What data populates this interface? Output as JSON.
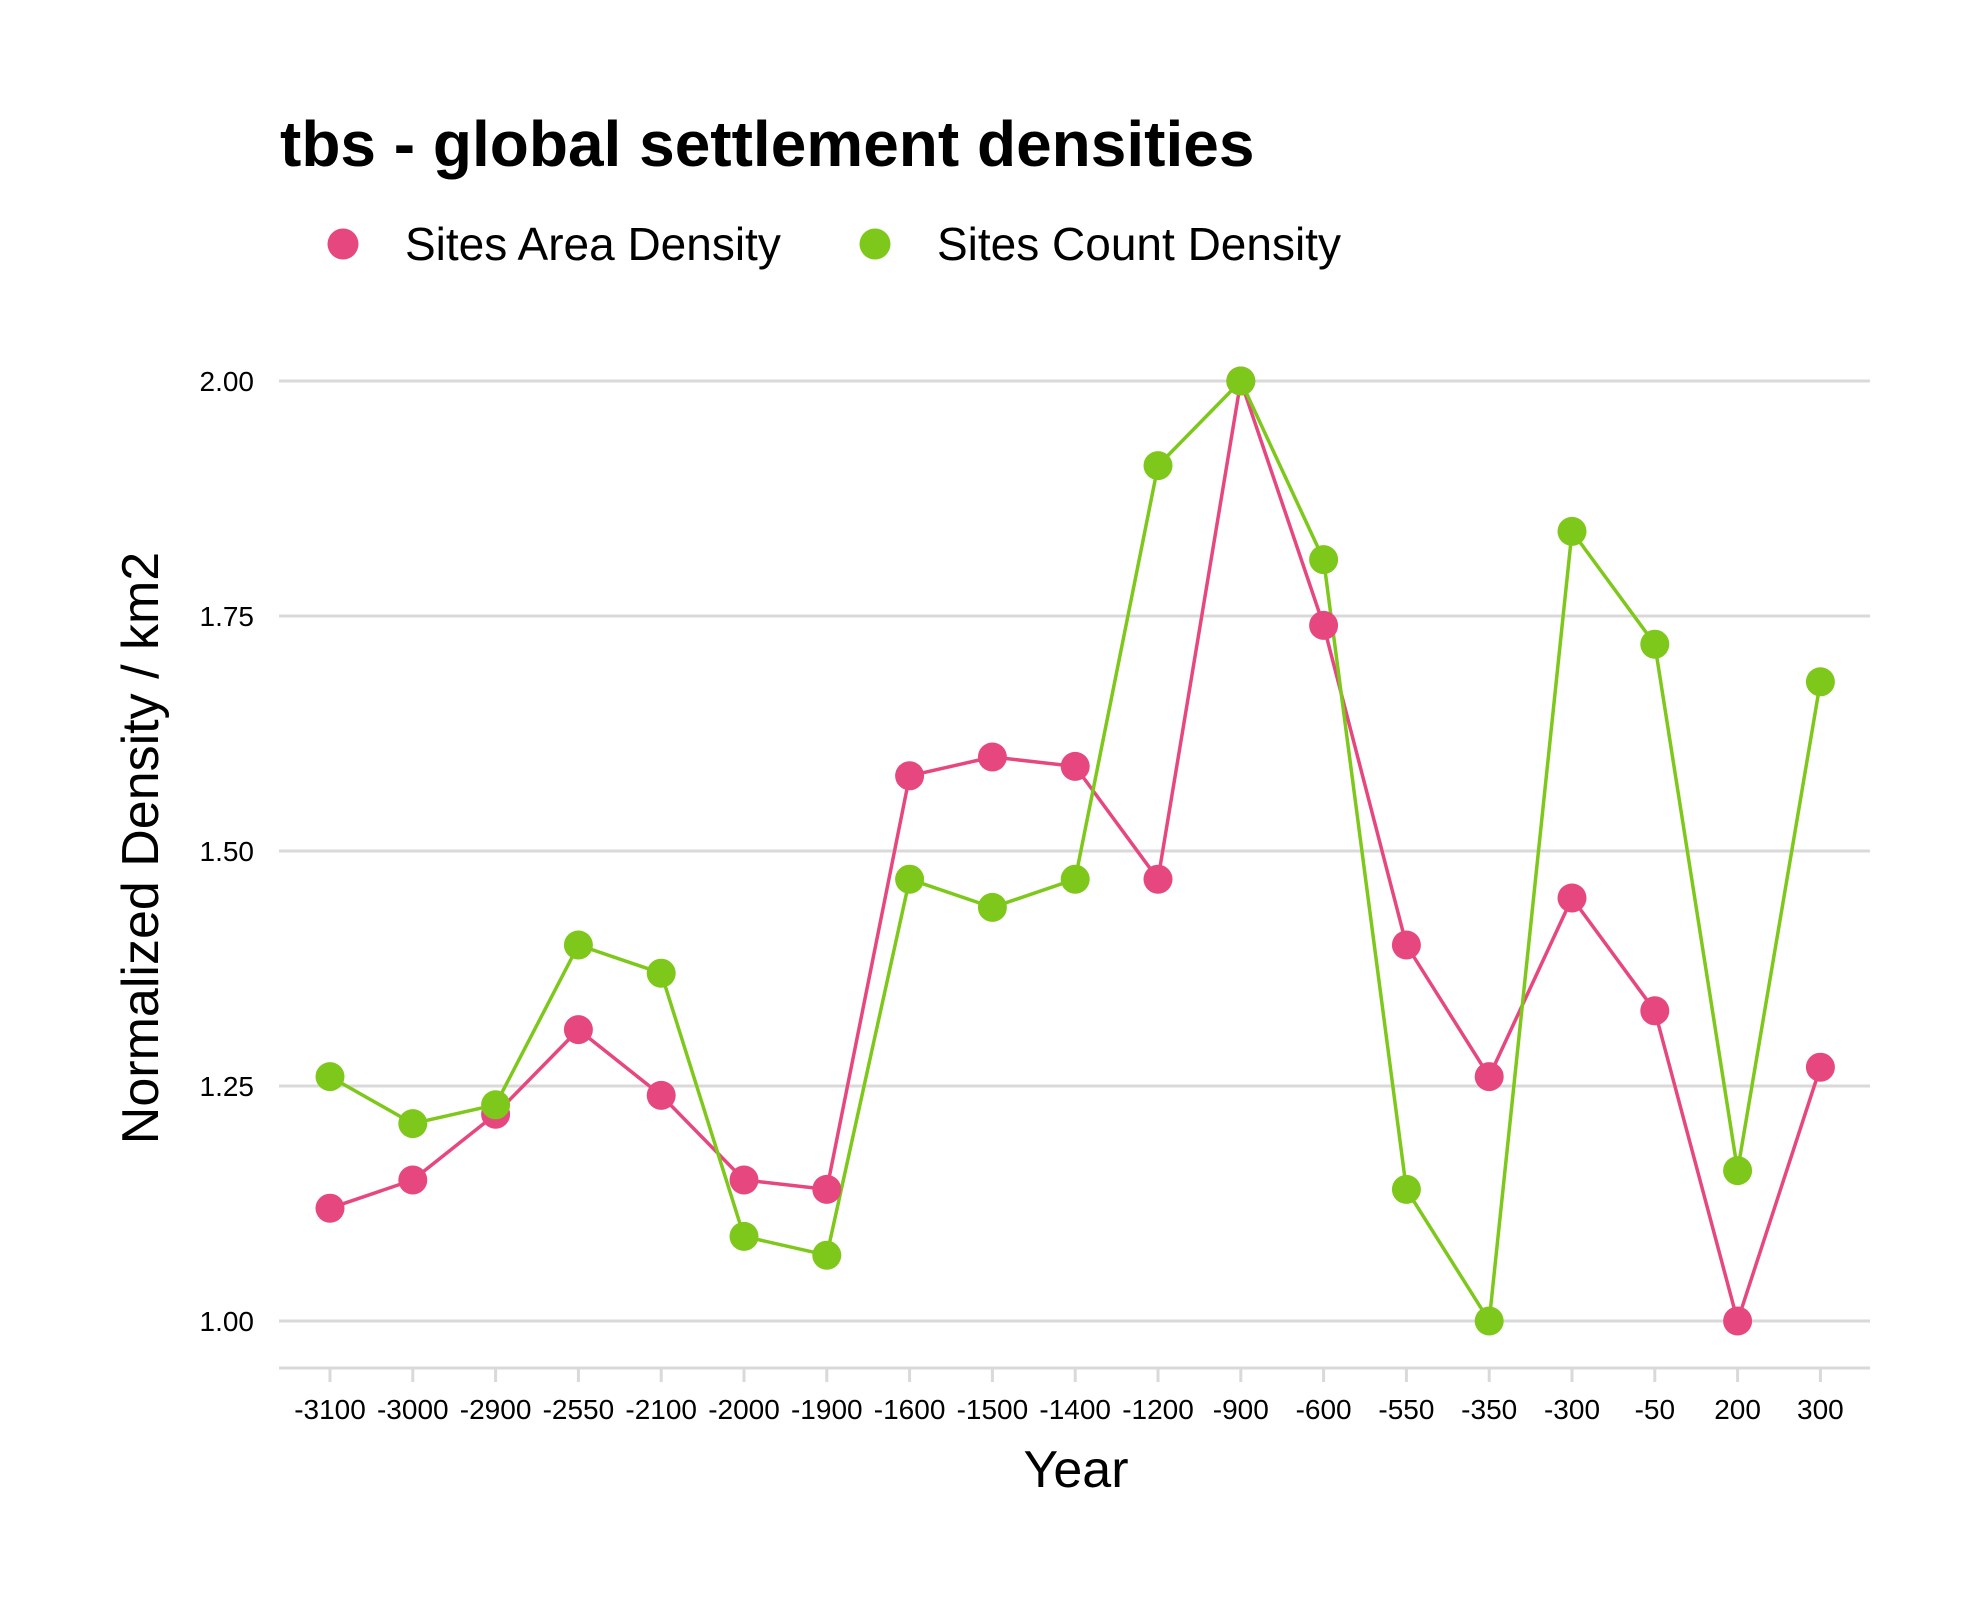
{
  "chart_data": {
    "type": "line",
    "title": "tbs  - global settlement densities",
    "xlabel": "Year",
    "ylabel": "Normalized Density / km2",
    "categories": [
      "-3100",
      "-3000",
      "-2900",
      "-2550",
      "-2100",
      "-2000",
      "-1900",
      "-1600",
      "-1500",
      "-1400",
      "-1200",
      "-900",
      "-600",
      "-550",
      "-350",
      "-300",
      "-50",
      "200",
      "300"
    ],
    "yticks": [
      "1.00",
      "1.25",
      "1.50",
      "1.75",
      "2.00"
    ],
    "ylim": [
      0.95,
      2.05
    ],
    "grid": true,
    "legend": "top-left",
    "series": [
      {
        "name": "Sites Area Density",
        "color": "#e7477f",
        "values": [
          1.12,
          1.15,
          1.22,
          1.31,
          1.24,
          1.15,
          1.14,
          1.58,
          1.6,
          1.59,
          1.47,
          2.0,
          1.74,
          1.4,
          1.26,
          1.45,
          1.33,
          1.0,
          1.27
        ]
      },
      {
        "name": "Sites Count Density",
        "color": "#7ec81b",
        "values": [
          1.26,
          1.21,
          1.23,
          1.4,
          1.37,
          1.09,
          1.07,
          1.47,
          1.44,
          1.47,
          1.91,
          2.0,
          1.81,
          1.14,
          1.0,
          1.84,
          1.72,
          1.16,
          1.68
        ]
      }
    ]
  }
}
